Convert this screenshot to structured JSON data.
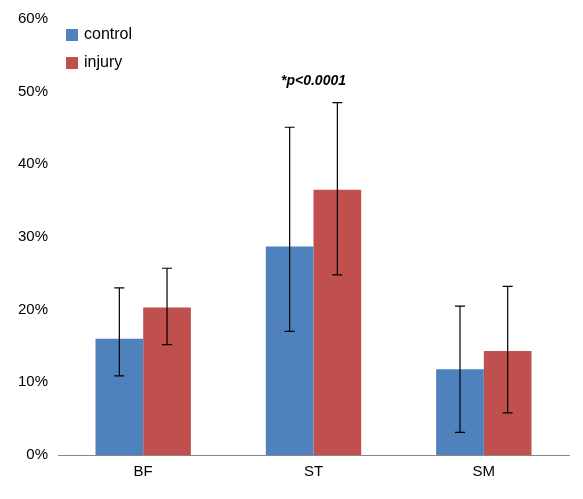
{
  "chart_data": {
    "type": "bar",
    "categories": [
      "BF",
      "ST",
      "SM"
    ],
    "series": [
      {
        "name": "control",
        "color": "#4f81bd",
        "values": [
          16.0,
          28.7,
          11.8
        ],
        "error_low": [
          10.9,
          17.0,
          3.1
        ],
        "error_high": [
          23.0,
          45.1,
          20.5
        ]
      },
      {
        "name": "injury",
        "color": "#c0504d",
        "values": [
          20.3,
          36.5,
          14.3
        ],
        "error_low": [
          15.2,
          24.8,
          5.8
        ],
        "error_high": [
          25.7,
          48.5,
          23.2
        ]
      }
    ],
    "ylim": [
      0,
      60
    ],
    "yticks": [
      {
        "value": 0,
        "label": "0%"
      },
      {
        "value": 10,
        "label": "10%"
      },
      {
        "value": 20,
        "label": "20%"
      },
      {
        "value": 30,
        "label": "30%"
      },
      {
        "value": 40,
        "label": "40%"
      },
      {
        "value": 50,
        "label": "50%"
      },
      {
        "value": 60,
        "label": "60%"
      }
    ],
    "annotations": [
      {
        "text": "*p<0.0001",
        "category": "ST"
      }
    ],
    "legend": "upper left",
    "grid": false
  }
}
